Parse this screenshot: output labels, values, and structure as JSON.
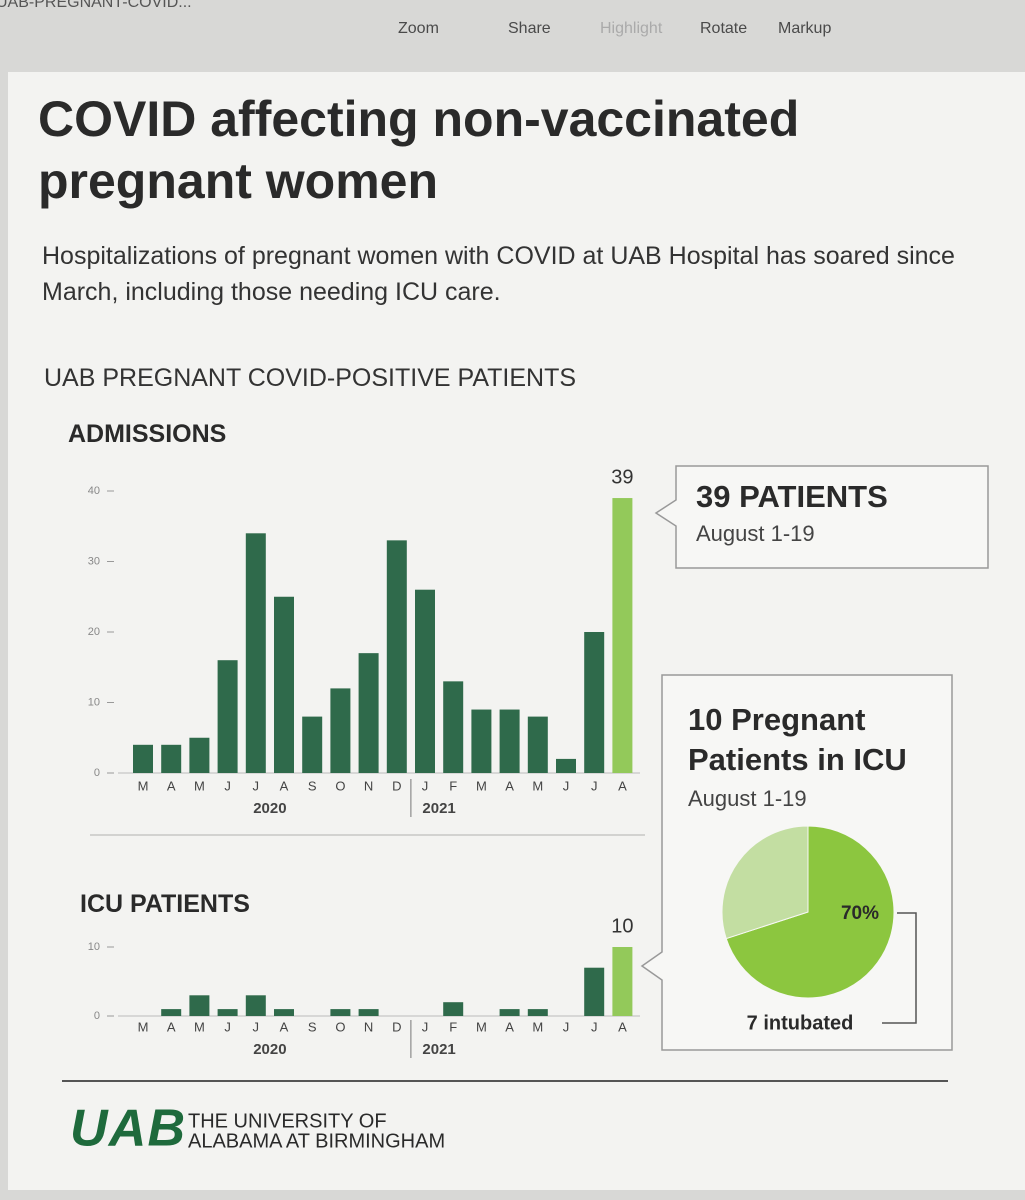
{
  "window": {
    "title": "UAB-PREGNANT-COVID...",
    "toolbar": [
      "Zoom",
      "Share",
      "Highlight",
      "Rotate",
      "Markup"
    ]
  },
  "header": {
    "title": "COVID affecting non-vaccinated pregnant women",
    "subtitle": "Hospitalizations of pregnant women with COVID at UAB Hospital has soared since March, including those needing ICU care.",
    "section": "UAB PREGNANT COVID-POSITIVE PATIENTS"
  },
  "chart_data": [
    {
      "type": "bar",
      "title": "ADMISSIONS",
      "categories": [
        "M",
        "A",
        "M",
        "J",
        "J",
        "A",
        "S",
        "O",
        "N",
        "D",
        "J",
        "F",
        "M",
        "A",
        "M",
        "J",
        "J",
        "A"
      ],
      "values": [
        4,
        4,
        5,
        16,
        34,
        25,
        8,
        12,
        17,
        33,
        26,
        13,
        9,
        9,
        8,
        2,
        20,
        39
      ],
      "colors": [
        "#2f6a4b",
        "#2f6a4b",
        "#2f6a4b",
        "#2f6a4b",
        "#2f6a4b",
        "#2f6a4b",
        "#2f6a4b",
        "#2f6a4b",
        "#2f6a4b",
        "#2f6a4b",
        "#2f6a4b",
        "#2f6a4b",
        "#2f6a4b",
        "#2f6a4b",
        "#2f6a4b",
        "#2f6a4b",
        "#2f6a4b",
        "#93c95a"
      ],
      "ylim": [
        0,
        40
      ],
      "yticks": [
        0,
        10,
        20,
        30,
        40
      ],
      "year_labels": [
        "2020",
        "2021"
      ]
    },
    {
      "type": "bar",
      "title": "ICU PATIENTS",
      "categories": [
        "M",
        "A",
        "M",
        "J",
        "J",
        "A",
        "S",
        "O",
        "N",
        "D",
        "J",
        "F",
        "M",
        "A",
        "M",
        "J",
        "J",
        "A"
      ],
      "values": [
        0,
        1,
        3,
        1,
        3,
        1,
        0,
        1,
        1,
        0,
        0,
        2,
        0,
        1,
        1,
        0,
        7,
        10
      ],
      "colors": [
        "#2f6a4b",
        "#2f6a4b",
        "#2f6a4b",
        "#2f6a4b",
        "#2f6a4b",
        "#2f6a4b",
        "#2f6a4b",
        "#2f6a4b",
        "#2f6a4b",
        "#2f6a4b",
        "#2f6a4b",
        "#2f6a4b",
        "#2f6a4b",
        "#2f6a4b",
        "#2f6a4b",
        "#2f6a4b",
        "#2f6a4b",
        "#93c95a"
      ],
      "ylim": [
        0,
        10
      ],
      "yticks": [
        0,
        10
      ],
      "year_labels": [
        "2020",
        "2021"
      ]
    },
    {
      "type": "pie",
      "values": [
        70,
        30
      ],
      "value_labels": [
        "70%",
        null
      ],
      "colors": [
        "#8cc63f",
        "#c3dea2"
      ],
      "annotation": "7 intubated"
    }
  ],
  "callouts": [
    {
      "title": "39 PATIENTS",
      "subtitle": "August 1-19"
    },
    {
      "title": "10 Pregnant Patients in ICU",
      "subtitle": "August 1-19"
    }
  ],
  "footer": {
    "logo": "UAB",
    "name": [
      "THE UNIVERSITY OF",
      "ALABAMA AT BIRMINGHAM"
    ]
  }
}
